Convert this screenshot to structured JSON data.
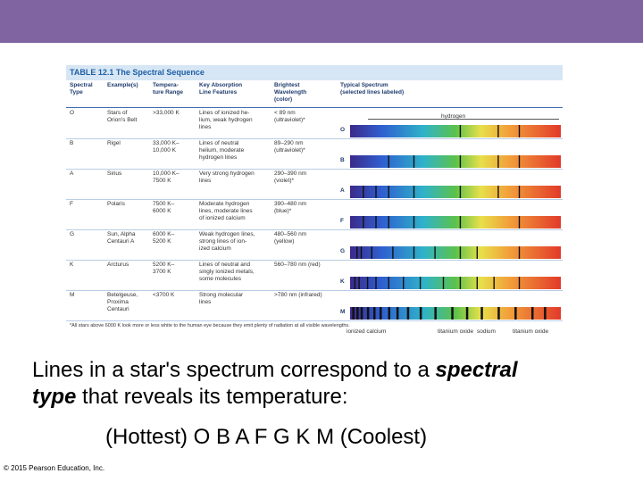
{
  "table": {
    "title": "TABLE 12.1  The Spectral Sequence",
    "headers": {
      "type": "Spectral\nType",
      "example": "Example(s)",
      "temp": "Tempera-\nture Range",
      "features": "Key Absorption\nLine Features",
      "wavelength": "Brightest\nWavelength\n(color)",
      "spectrum": "Typical Spectrum\n(selected lines labeled)"
    },
    "rows": [
      {
        "type": "O",
        "example": "Stars of\nOrion's Belt",
        "temp": ">33,000 K",
        "features": "Lines of ionized he-\nlium, weak hydrogen\nlines",
        "wavelength": "< 89 nm\n(ultraviolet)*",
        "label": "O"
      },
      {
        "type": "B",
        "example": "Rigel",
        "temp": "33,000 K–\n10,000 K",
        "features": "Lines of neutral\nhelium, moderate\nhydrogen lines",
        "wavelength": "89–290 nm\n(ultraviolet)*",
        "label": "B"
      },
      {
        "type": "A",
        "example": "Sirius",
        "temp": "10,000 K–\n7500 K",
        "features": "Very strong hydrogen\nlines",
        "wavelength": "290–390 nm\n(violet)*",
        "label": "A"
      },
      {
        "type": "F",
        "example": "Polaris",
        "temp": "7500 K–\n6000 K",
        "features": "Moderate hydrogen\nlines, moderate lines\nof ionized calcium",
        "wavelength": "390–480 nm\n(blue)*",
        "label": "F"
      },
      {
        "type": "G",
        "example": "Sun, Alpha\nCentauri A",
        "temp": "6000 K–\n5200 K",
        "features": "Weak hydrogen lines,\nstrong lines of ion-\nized calcium",
        "wavelength": "480–560 nm\n(yellow)",
        "label": "G"
      },
      {
        "type": "K",
        "example": "Arcturus",
        "temp": "5200 K–\n3700 K",
        "features": "Lines of neutral and\nsingly ionized metals,\nsome molecules",
        "wavelength": "560–780 nm (red)",
        "label": "K"
      },
      {
        "type": "M",
        "example": "Betelgeuse,\nProxima\nCentauri",
        "temp": "<3700 K",
        "features": "Strong molecular\nlines",
        "wavelength": ">780 nm (infrared)",
        "label": "M"
      }
    ],
    "footnote": "*All stars above 6000 K look more or less white to the human eye because they emit plenty of radiation at all visible wavelengths.",
    "line_labels": {
      "hydrogen": "hydrogen",
      "ionized_calcium": "ionized\ncalcium",
      "titanium_oxide_1": "titanium\noxide",
      "sodium": "sodium",
      "titanium_oxide_2": "titanium\noxide"
    }
  },
  "caption": {
    "line1_pre": "Lines in a star's spectrum correspond to a ",
    "line1_em": "spectral",
    "line2_em": "type",
    "line2_post": " that reveals its temperature:",
    "line3": "(Hottest) O  B  A  F  G  K  M (Coolest)"
  },
  "copyright": "© 2015 Pearson Education, Inc.",
  "colors": {
    "header_bar": "#8064a2",
    "table_title": "#1f5fa6",
    "table_title_bg": "#d6e6f4"
  }
}
